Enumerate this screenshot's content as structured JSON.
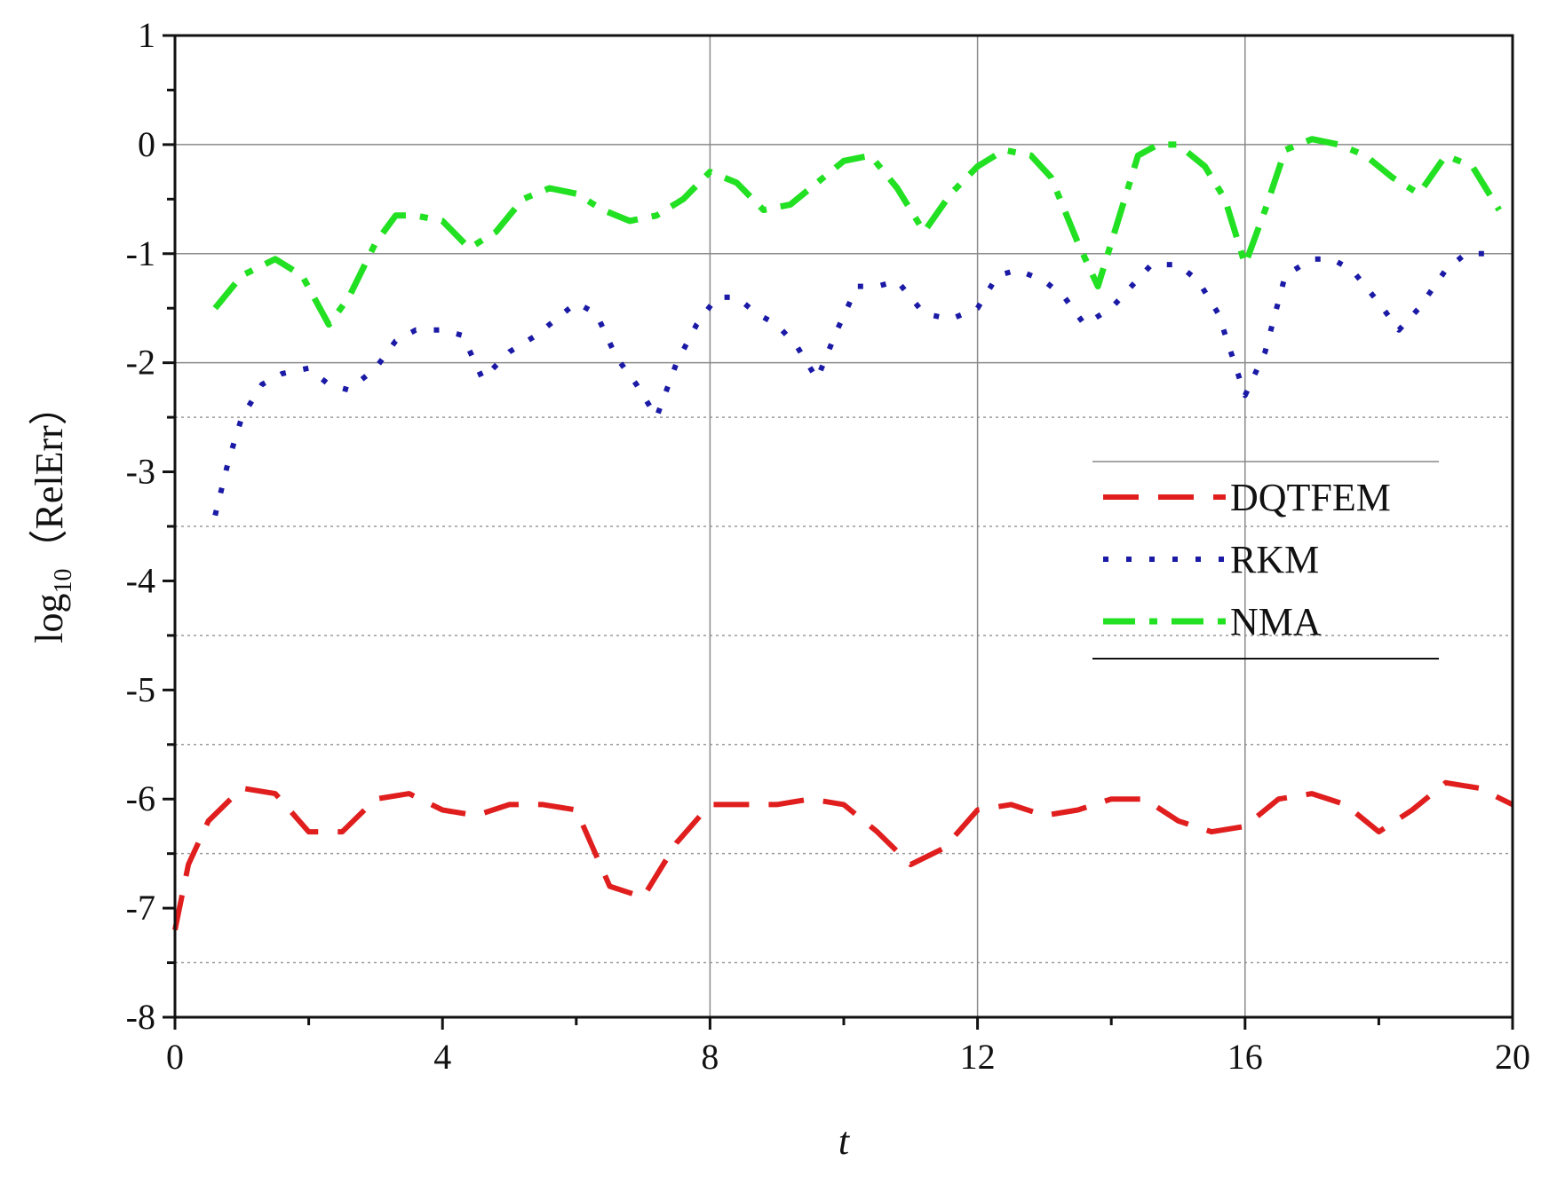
{
  "chart_data": {
    "type": "line",
    "xlabel": "t",
    "ylabel_main": "log",
    "ylabel_sub": "10",
    "ylabel_paren": "（RelErr）",
    "xlim": [
      0,
      20
    ],
    "ylim": [
      -8,
      1
    ],
    "x_major_ticks": [
      0,
      4,
      8,
      12,
      16,
      20
    ],
    "x_tick_labels": [
      "0",
      "4",
      "8",
      "12",
      "16",
      "20"
    ],
    "x_minor_ticks": [
      2,
      6,
      10,
      14,
      18
    ],
    "y_major_ticks": [
      1,
      0,
      -1,
      -2,
      -3,
      -4,
      -5,
      -6,
      -7,
      -8
    ],
    "y_tick_labels": [
      "1",
      "0",
      "-1",
      "-2",
      "-3",
      "-4",
      "-5",
      "-6",
      "-7",
      "-8"
    ],
    "y_minor_ticks": [
      0.5,
      -0.5,
      -1.5,
      -2.5,
      -3.5,
      -4.5,
      -5.5,
      -6.5,
      -7.5
    ],
    "grid": {
      "vertical_solid": [
        8,
        12,
        16
      ],
      "horizontal_solid": [
        0,
        -1,
        -2
      ],
      "horizontal_dotted": [
        -2.5,
        -3.5,
        -4.5,
        -5.5,
        -6.5,
        -7.5
      ]
    },
    "legend_position": "center-right",
    "series": [
      {
        "name": "DQTFEM",
        "color": "#e01e1e",
        "dash": "dashed",
        "x": [
          0.0,
          0.2,
          0.5,
          1.0,
          1.5,
          2.0,
          2.5,
          3.0,
          3.5,
          4.0,
          4.5,
          5.0,
          5.5,
          6.0,
          6.5,
          7.0,
          7.5,
          8.0,
          8.5,
          9.0,
          9.5,
          10.0,
          10.5,
          11.0,
          11.5,
          12.0,
          12.5,
          13.0,
          13.5,
          14.0,
          14.5,
          15.0,
          15.5,
          16.0,
          16.5,
          17.0,
          17.5,
          18.0,
          18.5,
          19.0,
          19.5,
          20.0
        ],
        "y": [
          -7.2,
          -6.6,
          -6.2,
          -5.9,
          -5.95,
          -6.3,
          -6.3,
          -6.0,
          -5.95,
          -6.1,
          -6.15,
          -6.05,
          -6.05,
          -6.1,
          -6.8,
          -6.9,
          -6.4,
          -6.05,
          -6.05,
          -6.05,
          -6.0,
          -6.05,
          -6.3,
          -6.6,
          -6.45,
          -6.1,
          -6.05,
          -6.15,
          -6.1,
          -6.0,
          -6.0,
          -6.2,
          -6.3,
          -6.25,
          -6.0,
          -5.95,
          -6.05,
          -6.3,
          -6.1,
          -5.85,
          -5.9,
          -6.05
        ]
      },
      {
        "name": "RKM",
        "color": "#1a1aa6",
        "dash": "dotted",
        "x": [
          0.6,
          0.8,
          1.0,
          1.3,
          1.6,
          2.0,
          2.3,
          2.6,
          3.0,
          3.3,
          3.6,
          4.0,
          4.3,
          4.6,
          5.0,
          5.4,
          5.7,
          6.0,
          6.3,
          6.6,
          6.9,
          7.2,
          7.5,
          7.8,
          8.1,
          8.4,
          8.7,
          9.0,
          9.3,
          9.6,
          9.9,
          10.2,
          10.5,
          10.8,
          11.2,
          11.6,
          12.0,
          12.3,
          12.6,
          13.0,
          13.3,
          13.6,
          14.0,
          14.3,
          14.6,
          15.0,
          15.3,
          15.6,
          16.0,
          16.3,
          16.6,
          17.0,
          17.3,
          17.6,
          18.0,
          18.3,
          18.6,
          19.0,
          19.3,
          19.6
        ],
        "y": [
          -3.4,
          -2.9,
          -2.5,
          -2.2,
          -2.1,
          -2.05,
          -2.2,
          -2.25,
          -2.05,
          -1.8,
          -1.7,
          -1.7,
          -1.75,
          -2.15,
          -1.9,
          -1.75,
          -1.6,
          -1.45,
          -1.55,
          -1.95,
          -2.2,
          -2.5,
          -2.0,
          -1.65,
          -1.4,
          -1.4,
          -1.55,
          -1.65,
          -1.85,
          -2.15,
          -1.7,
          -1.3,
          -1.3,
          -1.25,
          -1.55,
          -1.6,
          -1.5,
          -1.2,
          -1.15,
          -1.25,
          -1.4,
          -1.65,
          -1.5,
          -1.3,
          -1.1,
          -1.1,
          -1.25,
          -1.55,
          -2.3,
          -1.9,
          -1.2,
          -1.05,
          -1.05,
          -1.15,
          -1.45,
          -1.7,
          -1.5,
          -1.15,
          -1.0,
          -1.0
        ]
      },
      {
        "name": "NMA",
        "color": "#22e022",
        "dash": "dashdot",
        "x": [
          0.6,
          1.0,
          1.5,
          1.9,
          2.3,
          2.6,
          3.0,
          3.3,
          3.6,
          4.0,
          4.4,
          4.8,
          5.2,
          5.6,
          6.0,
          6.4,
          6.8,
          7.2,
          7.6,
          8.0,
          8.4,
          8.8,
          9.2,
          9.6,
          10.0,
          10.4,
          10.8,
          11.2,
          11.6,
          12.0,
          12.4,
          12.8,
          13.1,
          13.5,
          13.8,
          14.1,
          14.4,
          14.7,
          15.0,
          15.4,
          15.7,
          16.0,
          16.3,
          16.6,
          17.0,
          17.4,
          17.8,
          18.2,
          18.6,
          19.0,
          19.4,
          19.8
        ],
        "y": [
          -1.5,
          -1.2,
          -1.05,
          -1.2,
          -1.65,
          -1.4,
          -0.9,
          -0.65,
          -0.65,
          -0.7,
          -0.95,
          -0.8,
          -0.5,
          -0.4,
          -0.45,
          -0.6,
          -0.7,
          -0.65,
          -0.5,
          -0.25,
          -0.35,
          -0.6,
          -0.55,
          -0.35,
          -0.15,
          -0.1,
          -0.4,
          -0.8,
          -0.45,
          -0.2,
          -0.05,
          -0.1,
          -0.3,
          -0.9,
          -1.3,
          -0.7,
          -0.1,
          0.0,
          0.0,
          -0.2,
          -0.5,
          -1.1,
          -0.6,
          -0.05,
          0.05,
          0.0,
          -0.1,
          -0.3,
          -0.45,
          -0.1,
          -0.2,
          -0.6
        ]
      }
    ]
  }
}
